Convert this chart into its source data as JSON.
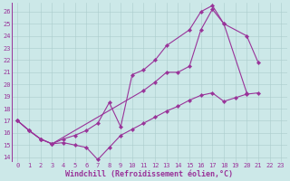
{
  "background_color": "#cce8e8",
  "grid_color": "#aacccc",
  "line_color": "#993399",
  "xlabel": "Windchill (Refroidissement éolien,°C)",
  "xlabel_fontsize": 6,
  "ytick_vals": [
    14,
    15,
    16,
    17,
    18,
    19,
    20,
    21,
    22,
    23,
    24,
    25,
    26
  ],
  "xtick_vals": [
    0,
    1,
    2,
    3,
    4,
    5,
    6,
    7,
    8,
    9,
    10,
    11,
    12,
    13,
    14,
    15,
    16,
    17,
    18,
    19,
    20,
    21,
    22,
    23
  ],
  "ylim": [
    13.6,
    26.7
  ],
  "xlim": [
    -0.5,
    23.5
  ],
  "tick_fontsize": 5.0,
  "linewidth": 0.8,
  "markersize": 2.2,
  "line1_x": [
    0,
    1,
    2,
    3,
    4,
    5,
    6,
    7,
    8,
    9,
    10,
    11,
    12,
    13,
    14,
    15,
    16,
    17,
    18,
    19,
    20,
    21
  ],
  "line1_y": [
    17.0,
    16.2,
    15.5,
    15.1,
    15.2,
    15.0,
    14.8,
    13.8,
    14.8,
    15.8,
    16.3,
    16.8,
    17.3,
    17.8,
    18.2,
    18.7,
    19.1,
    19.3,
    18.6,
    18.9,
    19.2,
    19.3
  ],
  "line2_x": [
    0,
    1,
    2,
    3,
    4,
    5,
    6,
    7,
    8,
    9,
    10,
    11,
    12,
    13,
    15,
    16,
    17,
    18,
    20,
    21
  ],
  "line2_y": [
    17.0,
    16.2,
    15.5,
    15.1,
    15.5,
    15.8,
    16.2,
    16.8,
    18.5,
    16.5,
    20.8,
    21.2,
    22.0,
    23.2,
    24.5,
    26.0,
    26.5,
    25.0,
    24.0,
    21.8
  ],
  "line3_x": [
    0,
    1,
    2,
    3,
    11,
    12,
    13,
    14,
    15,
    16,
    17,
    18,
    20
  ],
  "line3_y": [
    17.0,
    16.2,
    15.5,
    15.1,
    19.5,
    20.2,
    21.0,
    21.0,
    21.5,
    24.5,
    26.2,
    25.0,
    19.3
  ]
}
